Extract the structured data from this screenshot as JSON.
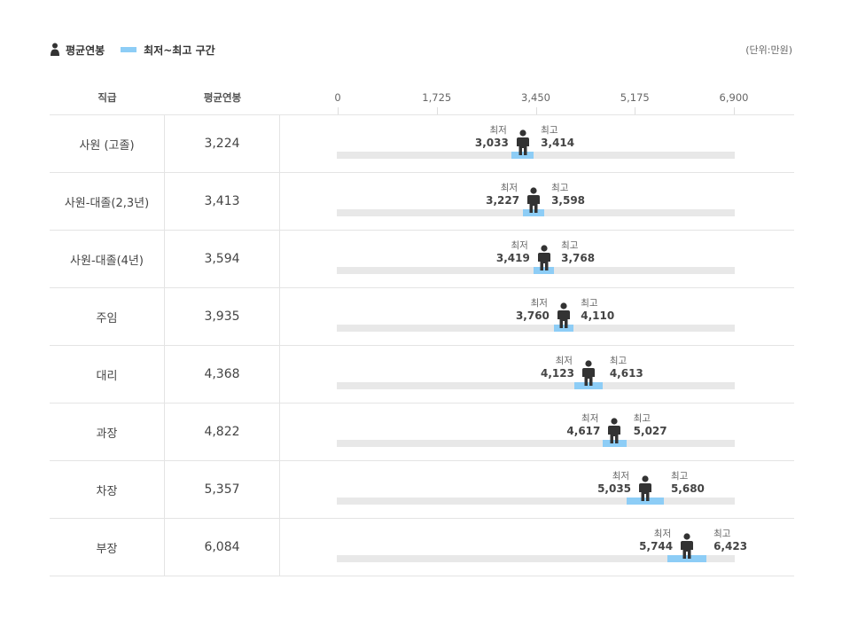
{
  "legend": {
    "avg_label": "평균연봉",
    "range_label": "최저~최고 구간",
    "unit": "(단위:만원)"
  },
  "colors": {
    "range": "#8dcdf6",
    "track": "#e8e8e8",
    "person": "#333333"
  },
  "chart_data": {
    "type": "table",
    "columns": [
      "직급",
      "평균연봉"
    ],
    "x_ticks": [
      "0",
      "1,725",
      "3,450",
      "5,175",
      "6,900"
    ],
    "xlim": [
      0,
      6900
    ],
    "min_caption": "최저",
    "max_caption": "최고",
    "rows": [
      {
        "rank": "사원 (고졸)",
        "avg": 3224,
        "avg_label": "3,224",
        "min": 3033,
        "min_label": "3,033",
        "max": 3414,
        "max_label": "3,414"
      },
      {
        "rank": "사원-대졸(2,3년)",
        "avg": 3413,
        "avg_label": "3,413",
        "min": 3227,
        "min_label": "3,227",
        "max": 3598,
        "max_label": "3,598"
      },
      {
        "rank": "사원-대졸(4년)",
        "avg": 3594,
        "avg_label": "3,594",
        "min": 3419,
        "min_label": "3,419",
        "max": 3768,
        "max_label": "3,768"
      },
      {
        "rank": "주임",
        "avg": 3935,
        "avg_label": "3,935",
        "min": 3760,
        "min_label": "3,760",
        "max": 4110,
        "max_label": "4,110"
      },
      {
        "rank": "대리",
        "avg": 4368,
        "avg_label": "4,368",
        "min": 4123,
        "min_label": "4,123",
        "max": 4613,
        "max_label": "4,613"
      },
      {
        "rank": "과장",
        "avg": 4822,
        "avg_label": "4,822",
        "min": 4617,
        "min_label": "4,617",
        "max": 5027,
        "max_label": "5,027"
      },
      {
        "rank": "차장",
        "avg": 5357,
        "avg_label": "5,357",
        "min": 5035,
        "min_label": "5,035",
        "max": 5680,
        "max_label": "5,680"
      },
      {
        "rank": "부장",
        "avg": 6084,
        "avg_label": "6,084",
        "min": 5744,
        "min_label": "5,744",
        "max": 6423,
        "max_label": "6,423"
      }
    ]
  }
}
